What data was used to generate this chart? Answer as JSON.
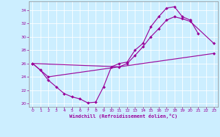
{
  "background_color": "#cceeff",
  "line_color": "#990099",
  "xlabel": "Windchill (Refroidissement éolien,°C)",
  "xlim_min": -0.5,
  "xlim_max": 23.5,
  "ylim_min": 19.5,
  "ylim_max": 35.3,
  "xticks": [
    0,
    1,
    2,
    3,
    4,
    5,
    6,
    7,
    8,
    9,
    10,
    11,
    12,
    13,
    14,
    15,
    16,
    17,
    18,
    19,
    20,
    21,
    22,
    23
  ],
  "yticks": [
    20,
    22,
    24,
    26,
    28,
    30,
    32,
    34
  ],
  "line1_x": [
    0,
    1,
    2,
    3,
    4,
    5,
    6,
    7,
    8,
    9,
    10,
    11,
    12,
    13,
    14,
    15,
    16,
    17,
    18,
    19,
    20,
    21
  ],
  "line1_y": [
    26.0,
    25.0,
    23.5,
    22.5,
    21.5,
    21.0,
    20.7,
    20.1,
    20.2,
    22.5,
    25.5,
    26.0,
    26.2,
    28.0,
    29.0,
    31.5,
    33.0,
    34.3,
    34.5,
    33.0,
    32.5,
    30.5
  ],
  "line2_x": [
    0,
    11,
    12,
    13,
    14,
    15,
    16,
    17,
    18,
    19,
    20,
    23
  ],
  "line2_y": [
    26.0,
    25.5,
    26.0,
    27.2,
    28.5,
    30.0,
    31.2,
    32.5,
    33.0,
    32.7,
    32.3,
    29.0
  ],
  "line3_x": [
    0,
    1,
    2,
    23
  ],
  "line3_y": [
    26.0,
    25.0,
    24.0,
    27.5
  ]
}
